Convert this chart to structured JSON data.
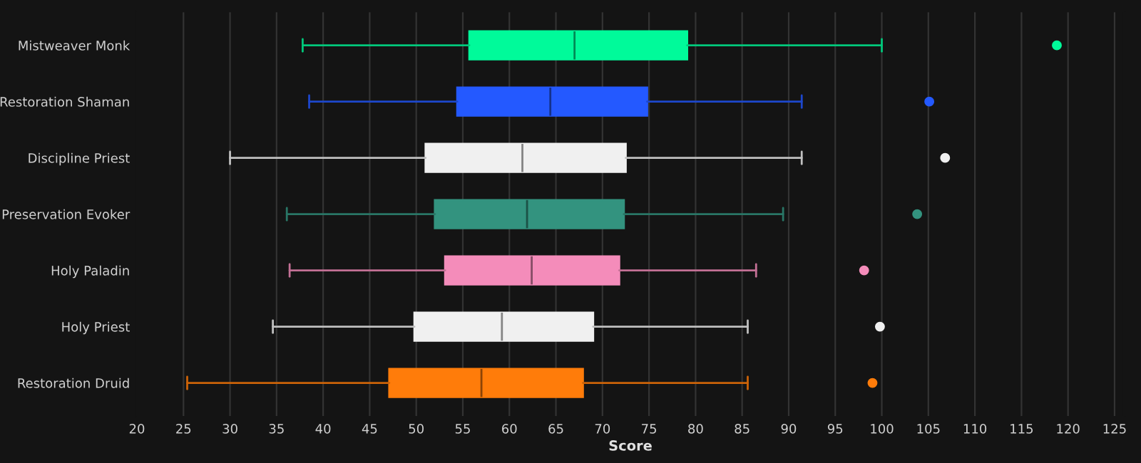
{
  "chart_data": {
    "type": "box",
    "xlabel": "Score",
    "categories": [
      "Mistweaver Monk",
      "Restoration Shaman",
      "Discipline Priest",
      "Preservation Evoker",
      "Holy Paladin",
      "Holy Priest",
      "Restoration Druid"
    ],
    "colors": [
      "#00fa9a",
      "#2459ff",
      "#f0f0f0",
      "#33937f",
      "#f48cba",
      "#f0f0f0",
      "#ff7c0a"
    ],
    "boxes": [
      {
        "low": 37.8,
        "q1": 55.7,
        "median": 67.0,
        "q3": 79.1,
        "high": 100.0,
        "outliers": [
          118.8
        ]
      },
      {
        "low": 38.5,
        "q1": 54.4,
        "median": 64.4,
        "q3": 74.8,
        "high": 91.4,
        "outliers": [
          105.1
        ]
      },
      {
        "low": 30.0,
        "q1": 51.0,
        "median": 61.4,
        "q3": 72.5,
        "high": 91.4,
        "outliers": [
          106.8
        ]
      },
      {
        "low": 36.1,
        "q1": 52.0,
        "median": 61.9,
        "q3": 72.3,
        "high": 89.4,
        "outliers": [
          103.8
        ]
      },
      {
        "low": 36.4,
        "q1": 53.1,
        "median": 62.4,
        "q3": 71.8,
        "high": 86.5,
        "outliers": [
          98.1
        ]
      },
      {
        "low": 34.6,
        "q1": 49.8,
        "median": 59.2,
        "q3": 69.0,
        "high": 85.6,
        "outliers": [
          99.8
        ]
      },
      {
        "low": 25.4,
        "q1": 47.1,
        "median": 57.0,
        "q3": 67.9,
        "high": 85.6,
        "outliers": [
          99.0
        ]
      }
    ],
    "orientation": "horizontal",
    "xlim": [
      20,
      126
    ],
    "xticks": [
      20,
      25,
      30,
      35,
      40,
      45,
      50,
      55,
      60,
      65,
      70,
      75,
      80,
      85,
      90,
      95,
      100,
      105,
      110,
      115,
      120,
      125
    ],
    "grid": "x"
  }
}
